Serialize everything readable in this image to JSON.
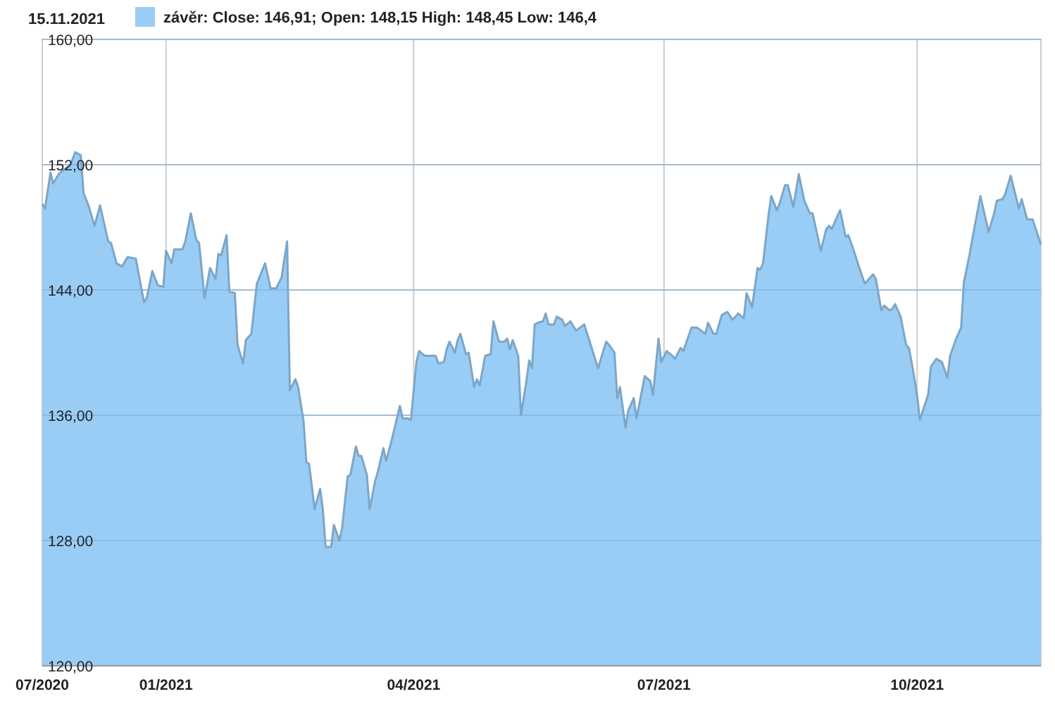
{
  "chart_data": {
    "type": "area",
    "title": "15.11.2021",
    "legend": "top left",
    "grid": true,
    "xlim": [
      "2020-11-17",
      "2021-11-15"
    ],
    "xticks": [
      {
        "value": "2020-11-17",
        "label": "07/2020"
      },
      {
        "value": "2021-01-01",
        "label": "01/2021"
      },
      {
        "value": "2021-04-01",
        "label": "04/2021"
      },
      {
        "value": "2021-07-01",
        "label": "07/2021"
      },
      {
        "value": "2021-10-01",
        "label": "10/2021"
      }
    ],
    "ylim": [
      120,
      160
    ],
    "yticks": [
      {
        "value": 120,
        "label": "120,00"
      },
      {
        "value": 128,
        "label": "128,00"
      },
      {
        "value": 136,
        "label": "136,00"
      },
      {
        "value": 144,
        "label": "144,00"
      },
      {
        "value": 152,
        "label": "152,00"
      },
      {
        "value": 160,
        "label": "160,00"
      }
    ],
    "series": [
      {
        "name": "závěr: Close: 146,91; Open: 148,15 High: 148,45 Low: 146,4",
        "color": "#99cdf6",
        "x": [
          "2020-11-17",
          "2020-11-18",
          "2020-11-20",
          "2020-11-21",
          "2020-11-23",
          "2020-11-25",
          "2020-11-27",
          "2020-11-29",
          "2020-12-01",
          "2020-12-02",
          "2020-12-04",
          "2020-12-06",
          "2020-12-08",
          "2020-12-11",
          "2020-12-12",
          "2020-12-14",
          "2020-12-16",
          "2020-12-18",
          "2020-12-21",
          "2020-12-24",
          "2020-12-25",
          "2020-12-27",
          "2020-12-29",
          "2020-12-31",
          "2021-01-01",
          "2021-01-03",
          "2021-01-04",
          "2021-01-07",
          "2021-01-08",
          "2021-01-10",
          "2021-01-12",
          "2021-01-13",
          "2021-01-15",
          "2021-01-17",
          "2021-01-19",
          "2021-01-20",
          "2021-01-21",
          "2021-01-23",
          "2021-01-24",
          "2021-01-26",
          "2021-01-27",
          "2021-01-29",
          "2021-01-30",
          "2021-02-01",
          "2021-02-03",
          "2021-02-06",
          "2021-02-08",
          "2021-02-10",
          "2021-02-12",
          "2021-02-14",
          "2021-02-15",
          "2021-02-17",
          "2021-02-18",
          "2021-02-20",
          "2021-02-21",
          "2021-02-22",
          "2021-02-24",
          "2021-02-26",
          "2021-02-27",
          "2021-02-28",
          "2021-03-02",
          "2021-03-03",
          "2021-03-05",
          "2021-03-06",
          "2021-03-08",
          "2021-03-09",
          "2021-03-11",
          "2021-03-12",
          "2021-03-13",
          "2021-03-15",
          "2021-03-16",
          "2021-03-18",
          "2021-03-19",
          "2021-03-21",
          "2021-03-22",
          "2021-03-24",
          "2021-03-27",
          "2021-03-28",
          "2021-03-30",
          "2021-03-31",
          "2021-04-02",
          "2021-04-03",
          "2021-04-05",
          "2021-04-09",
          "2021-04-10",
          "2021-04-12",
          "2021-04-13",
          "2021-04-14",
          "2021-04-16",
          "2021-04-17",
          "2021-04-18",
          "2021-04-20",
          "2021-04-21",
          "2021-04-23",
          "2021-04-24",
          "2021-04-25",
          "2021-04-27",
          "2021-04-29",
          "2021-04-30",
          "2021-05-02",
          "2021-05-04",
          "2021-05-05",
          "2021-05-06",
          "2021-05-07",
          "2021-05-09",
          "2021-05-10",
          "2021-05-12",
          "2021-05-13",
          "2021-05-14",
          "2021-05-15",
          "2021-05-16",
          "2021-05-18",
          "2021-05-19",
          "2021-05-20",
          "2021-05-22",
          "2021-05-23",
          "2021-05-25",
          "2021-05-26",
          "2021-05-28",
          "2021-05-30",
          "2021-06-02",
          "2021-06-04",
          "2021-06-07",
          "2021-06-10",
          "2021-06-11",
          "2021-06-13",
          "2021-06-14",
          "2021-06-15",
          "2021-06-17",
          "2021-06-18",
          "2021-06-20",
          "2021-06-21",
          "2021-06-24",
          "2021-06-26",
          "2021-06-27",
          "2021-06-29",
          "2021-06-30",
          "2021-07-02",
          "2021-07-04",
          "2021-07-05",
          "2021-07-07",
          "2021-07-08",
          "2021-07-11",
          "2021-07-13",
          "2021-07-16",
          "2021-07-17",
          "2021-07-19",
          "2021-07-20",
          "2021-07-22",
          "2021-07-24",
          "2021-07-26",
          "2021-07-28",
          "2021-07-30",
          "2021-07-31",
          "2021-08-02",
          "2021-08-04",
          "2021-08-05",
          "2021-08-06",
          "2021-08-08",
          "2021-08-09",
          "2021-08-11",
          "2021-08-12",
          "2021-08-14",
          "2021-08-15",
          "2021-08-17",
          "2021-08-19",
          "2021-08-21",
          "2021-08-23",
          "2021-08-24",
          "2021-08-27",
          "2021-08-29",
          "2021-08-30",
          "2021-08-31",
          "2021-09-03",
          "2021-09-05",
          "2021-09-06",
          "2021-09-08",
          "2021-09-10",
          "2021-09-12",
          "2021-09-15",
          "2021-09-16",
          "2021-09-18",
          "2021-09-19",
          "2021-09-21",
          "2021-09-22",
          "2021-09-23",
          "2021-09-25",
          "2021-09-27",
          "2021-09-28",
          "2021-09-29",
          "2021-10-01",
          "2021-10-02",
          "2021-10-05",
          "2021-10-06",
          "2021-10-08",
          "2021-10-10",
          "2021-10-12",
          "2021-10-13",
          "2021-10-15",
          "2021-10-17",
          "2021-10-18",
          "2021-10-20",
          "2021-10-21",
          "2021-10-24",
          "2021-10-27",
          "2021-10-29",
          "2021-10-30",
          "2021-11-01",
          "2021-11-02",
          "2021-11-04",
          "2021-11-07",
          "2021-11-08",
          "2021-11-10",
          "2021-11-12",
          "2021-11-15"
        ],
        "values": [
          149.5,
          149.2,
          151.5,
          150.8,
          151.4,
          151.7,
          151.9,
          152.8,
          152.6,
          150.2,
          149.3,
          148.1,
          149.4,
          147.1,
          147.0,
          145.7,
          145.5,
          146.1,
          146.0,
          143.2,
          143.5,
          145.2,
          144.3,
          144.2,
          146.5,
          145.7,
          146.6,
          146.6,
          147.1,
          148.9,
          147.2,
          147.0,
          143.5,
          145.4,
          144.7,
          146.3,
          146.2,
          147.5,
          143.9,
          143.8,
          140.5,
          139.3,
          140.8,
          141.2,
          144.4,
          145.7,
          144.1,
          144.1,
          144.8,
          147.1,
          137.6,
          138.3,
          137.8,
          135.6,
          133.0,
          132.9,
          130.0,
          131.3,
          130.0,
          127.6,
          127.6,
          129.0,
          128.0,
          128.8,
          132.1,
          132.2,
          134.0,
          133.4,
          133.4,
          132.2,
          130.0,
          131.8,
          132.4,
          133.9,
          133.1,
          134.4,
          136.6,
          135.8,
          135.8,
          135.7,
          139.4,
          140.1,
          139.8,
          139.8,
          139.3,
          139.4,
          140.2,
          140.7,
          140.0,
          140.8,
          141.2,
          139.9,
          140.0,
          137.8,
          138.3,
          137.9,
          139.8,
          139.9,
          142.0,
          140.7,
          140.7,
          140.9,
          140.2,
          140.8,
          139.8,
          136.0,
          138.2,
          139.5,
          139.0,
          141.8,
          141.9,
          142.0,
          142.5,
          141.8,
          141.8,
          142.3,
          142.1,
          141.7,
          142.0,
          141.4,
          141.8,
          140.7,
          139.0,
          140.7,
          140.5,
          140.0,
          137.1,
          137.8,
          135.2,
          136.3,
          137.1,
          135.8,
          138.5,
          138.2,
          137.3,
          140.9,
          139.4,
          140.1,
          139.8,
          139.6,
          140.3,
          140.1,
          141.6,
          141.6,
          141.2,
          141.9,
          141.2,
          141.2,
          142.4,
          142.6,
          142.1,
          142.5,
          142.2,
          143.8,
          142.9,
          145.4,
          145.3,
          145.7,
          148.8,
          150.0,
          149.1,
          149.5,
          150.7,
          150.7,
          149.3,
          151.4,
          149.7,
          148.9,
          148.9,
          146.5,
          147.9,
          148.1,
          147.9,
          149.1,
          147.4,
          147.5,
          146.5,
          145.4,
          144.4,
          145.0,
          144.7,
          142.7,
          143.0,
          142.7,
          142.8,
          143.1,
          142.3,
          140.5,
          140.3,
          139.4,
          137.3,
          135.7,
          137.3,
          139.1,
          139.6,
          139.4,
          138.4,
          139.8,
          140.8,
          141.6,
          144.5,
          146.2,
          147.2,
          150.0,
          147.7,
          148.9,
          149.7,
          149.8,
          150.1,
          151.3,
          149.2,
          149.8,
          148.5,
          148.5,
          146.9
        ]
      }
    ]
  }
}
